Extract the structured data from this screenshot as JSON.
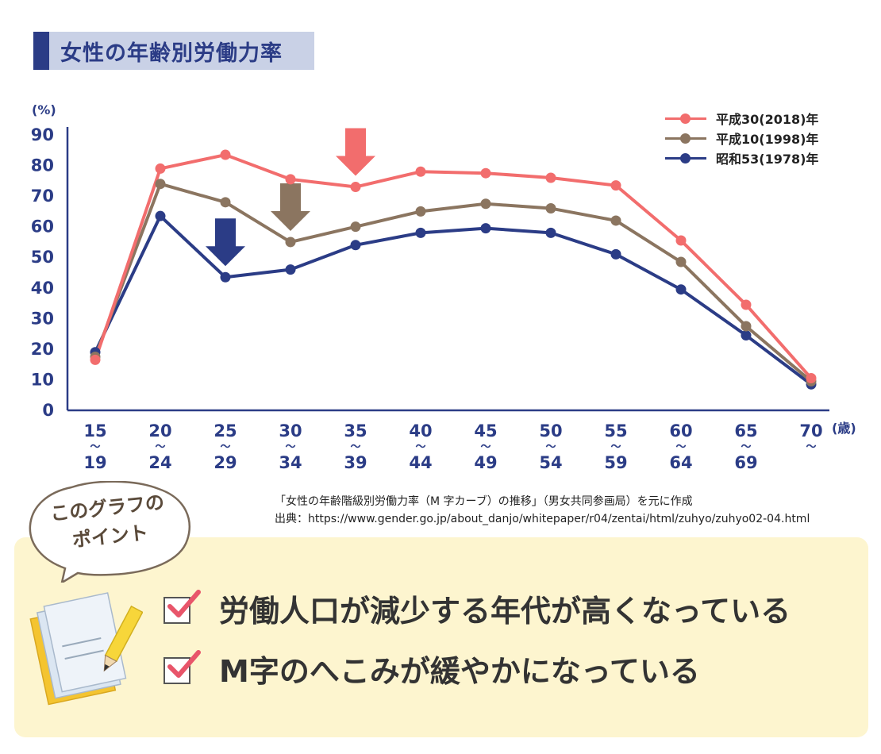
{
  "header": {
    "title": "女性の年齢別労働力率"
  },
  "chart_data": {
    "type": "line",
    "y_unit": "(%)",
    "x_unit": "(歳)",
    "ylim": [
      0,
      90
    ],
    "yticks": [
      "0",
      "10",
      "20",
      "30",
      "40",
      "50",
      "60",
      "70",
      "80",
      "90"
    ],
    "categories": [
      "15〜19",
      "20〜24",
      "25〜29",
      "30〜34",
      "35〜39",
      "40〜44",
      "45〜49",
      "50〜54",
      "55〜59",
      "60〜64",
      "65〜69",
      "70〜"
    ],
    "tick_top": [
      "15",
      "20",
      "25",
      "30",
      "35",
      "40",
      "45",
      "50",
      "55",
      "60",
      "65",
      "70"
    ],
    "tick_bottom": [
      "19",
      "24",
      "29",
      "34",
      "39",
      "44",
      "49",
      "54",
      "59",
      "64",
      "69",
      ""
    ],
    "tilde": "〜",
    "series": [
      {
        "name": "平成30(2018)年",
        "color": "#f26d6d",
        "values": [
          16.5,
          79.0,
          83.5,
          75.5,
          73.0,
          78.0,
          77.5,
          76.0,
          73.5,
          55.5,
          34.5,
          10.5
        ]
      },
      {
        "name": "平成10(1998)年",
        "color": "#8b7560",
        "values": [
          17.5,
          74.0,
          68.0,
          55.0,
          60.0,
          65.0,
          67.5,
          66.0,
          62.0,
          48.5,
          27.5,
          9.5
        ]
      },
      {
        "name": "昭和53(1978)年",
        "color": "#2b3c86",
        "values": [
          19.0,
          63.5,
          43.5,
          46.0,
          54.0,
          58.0,
          59.5,
          58.0,
          51.0,
          39.5,
          24.5,
          8.5
        ]
      }
    ],
    "annotations": [
      {
        "type": "arrow-down",
        "series": "平成30(2018)年",
        "category": "35〜39",
        "color": "#f26d6d"
      },
      {
        "type": "arrow-down",
        "series": "平成10(1998)年",
        "category": "30〜34",
        "color": "#8b7560"
      },
      {
        "type": "arrow-down",
        "series": "昭和53(1978)年",
        "category": "25〜29",
        "color": "#2b3c86"
      }
    ],
    "legend_position": "top-right",
    "grid": false
  },
  "source": {
    "line1": "「女性の年齢階級別労働力率（M 字カーブ）の推移」（男女共同参画局）を元に作成",
    "line2": "出典：https://www.gender.go.jp/about_danjo/whitepaper/r04/zentai/html/zuhyo/zuhyo02-04.html"
  },
  "points": {
    "bubble_line1": "このグラフの",
    "bubble_line2": "ポイント",
    "items": [
      "労働人口が減少する年代が高くなっている",
      "M字のへこみが緩やかになっている"
    ],
    "check_color": "#e8556a"
  }
}
